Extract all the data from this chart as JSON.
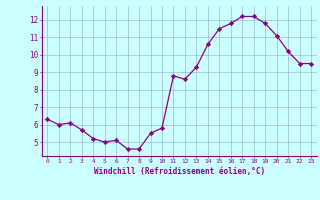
{
  "x": [
    0,
    1,
    2,
    3,
    4,
    5,
    6,
    7,
    8,
    9,
    10,
    11,
    12,
    13,
    14,
    15,
    16,
    17,
    18,
    19,
    20,
    21,
    22,
    23
  ],
  "y": [
    6.3,
    6.0,
    6.1,
    5.7,
    5.2,
    5.0,
    5.1,
    4.6,
    4.6,
    5.5,
    5.8,
    8.8,
    8.6,
    9.3,
    10.6,
    11.5,
    11.8,
    12.2,
    12.2,
    11.8,
    11.1,
    10.2,
    9.5,
    9.5
  ],
  "line_color": "#880088",
  "marker": "D",
  "marker_size": 2.2,
  "bg_color": "#ccffff",
  "grid_color": "#99bbcc",
  "axis_color": "#880088",
  "xlabel": "Windchill (Refroidissement éolien,°C)",
  "ylabel": "",
  "ylim": [
    4.2,
    12.8
  ],
  "yticks": [
    5,
    6,
    7,
    8,
    9,
    10,
    11,
    12
  ],
  "xlim": [
    -0.5,
    23.5
  ],
  "xticks": [
    0,
    1,
    2,
    3,
    4,
    5,
    6,
    7,
    8,
    9,
    10,
    11,
    12,
    13,
    14,
    15,
    16,
    17,
    18,
    19,
    20,
    21,
    22,
    23
  ]
}
